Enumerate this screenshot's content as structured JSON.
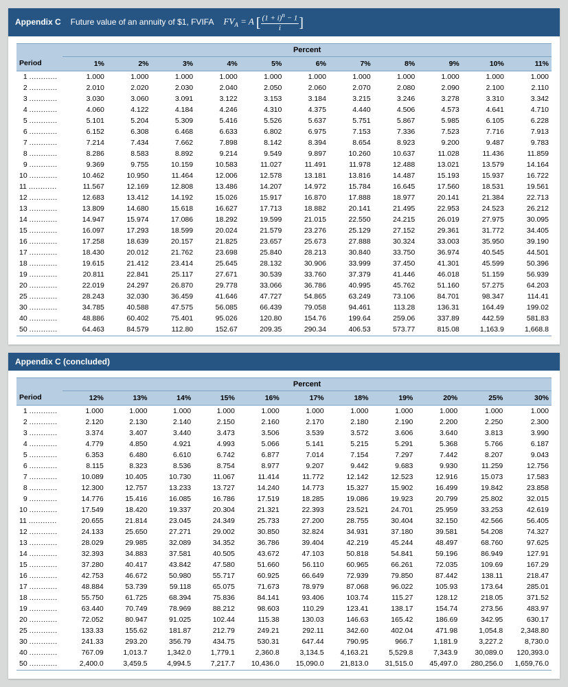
{
  "sheet1": {
    "title_appendix": "Appendix C",
    "title_desc": "Future value of an annuity of $1, FV",
    "title_sub": "IFA",
    "super_header": "Percent",
    "period_label": "Period",
    "cols": [
      "1%",
      "2%",
      "3%",
      "4%",
      "5%",
      "6%",
      "7%",
      "8%",
      "9%",
      "10%",
      "11%"
    ],
    "rows": [
      {
        "p": "1",
        "v": [
          "1.000",
          "1.000",
          "1.000",
          "1.000",
          "1.000",
          "1.000",
          "1.000",
          "1.000",
          "1.000",
          "1.000",
          "1.000"
        ]
      },
      {
        "p": "2",
        "v": [
          "2.010",
          "2.020",
          "2.030",
          "2.040",
          "2.050",
          "2.060",
          "2.070",
          "2.080",
          "2.090",
          "2.100",
          "2.110"
        ]
      },
      {
        "p": "3",
        "v": [
          "3.030",
          "3.060",
          "3.091",
          "3.122",
          "3.153",
          "3.184",
          "3.215",
          "3.246",
          "3.278",
          "3.310",
          "3.342"
        ]
      },
      {
        "p": "4",
        "v": [
          "4.060",
          "4.122",
          "4.184",
          "4.246",
          "4.310",
          "4.375",
          "4.440",
          "4.506",
          "4.573",
          "4.641",
          "4.710"
        ]
      },
      {
        "p": "5",
        "v": [
          "5.101",
          "5.204",
          "5.309",
          "5.416",
          "5.526",
          "5.637",
          "5.751",
          "5.867",
          "5.985",
          "6.105",
          "6.228"
        ]
      },
      {
        "p": "6",
        "v": [
          "6.152",
          "6.308",
          "6.468",
          "6.633",
          "6.802",
          "6.975",
          "7.153",
          "7.336",
          "7.523",
          "7.716",
          "7.913"
        ]
      },
      {
        "p": "7",
        "v": [
          "7.214",
          "7.434",
          "7.662",
          "7.898",
          "8.142",
          "8.394",
          "8.654",
          "8.923",
          "9.200",
          "9.487",
          "9.783"
        ]
      },
      {
        "p": "8",
        "v": [
          "8.286",
          "8.583",
          "8.892",
          "9.214",
          "9.549",
          "9.897",
          "10.260",
          "10.637",
          "11.028",
          "11.436",
          "11.859"
        ]
      },
      {
        "p": "9",
        "v": [
          "9.369",
          "9.755",
          "10.159",
          "10.583",
          "11.027",
          "11.491",
          "11.978",
          "12.488",
          "13.021",
          "13.579",
          "14.164"
        ]
      },
      {
        "p": "10",
        "v": [
          "10.462",
          "10.950",
          "11.464",
          "12.006",
          "12.578",
          "13.181",
          "13.816",
          "14.487",
          "15.193",
          "15.937",
          "16.722"
        ]
      },
      {
        "p": "11",
        "v": [
          "11.567",
          "12.169",
          "12.808",
          "13.486",
          "14.207",
          "14.972",
          "15.784",
          "16.645",
          "17.560",
          "18.531",
          "19.561"
        ]
      },
      {
        "p": "12",
        "v": [
          "12.683",
          "13.412",
          "14.192",
          "15.026",
          "15.917",
          "16.870",
          "17.888",
          "18.977",
          "20.141",
          "21.384",
          "22.713"
        ]
      },
      {
        "p": "13",
        "v": [
          "13.809",
          "14.680",
          "15.618",
          "16.627",
          "17.713",
          "18.882",
          "20.141",
          "21.495",
          "22.953",
          "24.523",
          "26.212"
        ]
      },
      {
        "p": "14",
        "v": [
          "14.947",
          "15.974",
          "17.086",
          "18.292",
          "19.599",
          "21.015",
          "22.550",
          "24.215",
          "26.019",
          "27.975",
          "30.095"
        ]
      },
      {
        "p": "15",
        "v": [
          "16.097",
          "17.293",
          "18.599",
          "20.024",
          "21.579",
          "23.276",
          "25.129",
          "27.152",
          "29.361",
          "31.772",
          "34.405"
        ]
      },
      {
        "p": "16",
        "v": [
          "17.258",
          "18.639",
          "20.157",
          "21.825",
          "23.657",
          "25.673",
          "27.888",
          "30.324",
          "33.003",
          "35.950",
          "39.190"
        ]
      },
      {
        "p": "17",
        "v": [
          "18.430",
          "20.012",
          "21.762",
          "23.698",
          "25.840",
          "28.213",
          "30.840",
          "33.750",
          "36.974",
          "40.545",
          "44.501"
        ]
      },
      {
        "p": "18",
        "v": [
          "19.615",
          "21.412",
          "23.414",
          "25.645",
          "28.132",
          "30.906",
          "33.999",
          "37.450",
          "41.301",
          "45.599",
          "50.396"
        ]
      },
      {
        "p": "19",
        "v": [
          "20.811",
          "22.841",
          "25.117",
          "27.671",
          "30.539",
          "33.760",
          "37.379",
          "41.446",
          "46.018",
          "51.159",
          "56.939"
        ]
      },
      {
        "p": "20",
        "v": [
          "22.019",
          "24.297",
          "26.870",
          "29.778",
          "33.066",
          "36.786",
          "40.995",
          "45.762",
          "51.160",
          "57.275",
          "64.203"
        ]
      },
      {
        "p": "25",
        "v": [
          "28.243",
          "32.030",
          "36.459",
          "41.646",
          "47.727",
          "54.865",
          "63.249",
          "73.106",
          "84.701",
          "98.347",
          "114.41"
        ]
      },
      {
        "p": "30",
        "v": [
          "34.785",
          "40.588",
          "47.575",
          "56.085",
          "66.439",
          "79.058",
          "94.461",
          "113.28",
          "136.31",
          "164.49",
          "199.02"
        ]
      },
      {
        "p": "40",
        "v": [
          "48.886",
          "60.402",
          "75.401",
          "95.026",
          "120.80",
          "154.76",
          "199.64",
          "259.06",
          "337.89",
          "442.59",
          "581.83"
        ]
      },
      {
        "p": "50",
        "v": [
          "64.463",
          "84.579",
          "112.80",
          "152.67",
          "209.35",
          "290.34",
          "406.53",
          "573.77",
          "815.08",
          "1,163.9",
          "1,668.8"
        ]
      }
    ]
  },
  "sheet2": {
    "title_full": "Appendix C (concluded)",
    "super_header": "Percent",
    "period_label": "Period",
    "cols": [
      "12%",
      "13%",
      "14%",
      "15%",
      "16%",
      "17%",
      "18%",
      "19%",
      "20%",
      "25%",
      "30%"
    ],
    "rows": [
      {
        "p": "1",
        "v": [
          "1.000",
          "1.000",
          "1.000",
          "1.000",
          "1.000",
          "1.000",
          "1.000",
          "1.000",
          "1.000",
          "1.000",
          "1.000"
        ]
      },
      {
        "p": "2",
        "v": [
          "2.120",
          "2.130",
          "2.140",
          "2.150",
          "2.160",
          "2.170",
          "2.180",
          "2.190",
          "2.200",
          "2.250",
          "2.300"
        ]
      },
      {
        "p": "3",
        "v": [
          "3.374",
          "3.407",
          "3.440",
          "3.473",
          "3.506",
          "3.539",
          "3.572",
          "3.606",
          "3.640",
          "3.813",
          "3.990"
        ]
      },
      {
        "p": "4",
        "v": [
          "4.779",
          "4.850",
          "4.921",
          "4.993",
          "5.066",
          "5.141",
          "5.215",
          "5.291",
          "5.368",
          "5.766",
          "6.187"
        ]
      },
      {
        "p": "5",
        "v": [
          "6.353",
          "6.480",
          "6.610",
          "6.742",
          "6.877",
          "7.014",
          "7.154",
          "7.297",
          "7.442",
          "8.207",
          "9.043"
        ]
      },
      {
        "p": "6",
        "v": [
          "8.115",
          "8.323",
          "8.536",
          "8.754",
          "8.977",
          "9.207",
          "9.442",
          "9.683",
          "9.930",
          "11.259",
          "12.756"
        ]
      },
      {
        "p": "7",
        "v": [
          "10.089",
          "10.405",
          "10.730",
          "11.067",
          "11.414",
          "11.772",
          "12.142",
          "12.523",
          "12.916",
          "15.073",
          "17.583"
        ]
      },
      {
        "p": "8",
        "v": [
          "12.300",
          "12.757",
          "13.233",
          "13.727",
          "14.240",
          "14.773",
          "15.327",
          "15.902",
          "16.499",
          "19.842",
          "23.858"
        ]
      },
      {
        "p": "9",
        "v": [
          "14.776",
          "15.416",
          "16.085",
          "16.786",
          "17.519",
          "18.285",
          "19.086",
          "19.923",
          "20.799",
          "25.802",
          "32.015"
        ]
      },
      {
        "p": "10",
        "v": [
          "17.549",
          "18.420",
          "19.337",
          "20.304",
          "21.321",
          "22.393",
          "23.521",
          "24.701",
          "25.959",
          "33.253",
          "42.619"
        ]
      },
      {
        "p": "11",
        "v": [
          "20.655",
          "21.814",
          "23.045",
          "24.349",
          "25.733",
          "27.200",
          "28.755",
          "30.404",
          "32.150",
          "42.566",
          "56.405"
        ]
      },
      {
        "p": "12",
        "v": [
          "24.133",
          "25.650",
          "27.271",
          "29.002",
          "30.850",
          "32.824",
          "34.931",
          "37.180",
          "39.581",
          "54.208",
          "74.327"
        ]
      },
      {
        "p": "13",
        "v": [
          "28.029",
          "29.985",
          "32.089",
          "34.352",
          "36.786",
          "39.404",
          "42.219",
          "45.244",
          "48.497",
          "68.760",
          "97.625"
        ]
      },
      {
        "p": "14",
        "v": [
          "32.393",
          "34.883",
          "37.581",
          "40.505",
          "43.672",
          "47.103",
          "50.818",
          "54.841",
          "59.196",
          "86.949",
          "127.91"
        ]
      },
      {
        "p": "15",
        "v": [
          "37.280",
          "40.417",
          "43.842",
          "47.580",
          "51.660",
          "56.110",
          "60.965",
          "66.261",
          "72.035",
          "109.69",
          "167.29"
        ]
      },
      {
        "p": "16",
        "v": [
          "42.753",
          "46.672",
          "50.980",
          "55.717",
          "60.925",
          "66.649",
          "72.939",
          "79.850",
          "87.442",
          "138.11",
          "218.47"
        ]
      },
      {
        "p": "17",
        "v": [
          "48.884",
          "53.739",
          "59.118",
          "65.075",
          "71.673",
          "78.979",
          "87.068",
          "96.022",
          "105.93",
          "173.64",
          "285.01"
        ]
      },
      {
        "p": "18",
        "v": [
          "55.750",
          "61.725",
          "68.394",
          "75.836",
          "84.141",
          "93.406",
          "103.74",
          "115.27",
          "128.12",
          "218.05",
          "371.52"
        ]
      },
      {
        "p": "19",
        "v": [
          "63.440",
          "70.749",
          "78.969",
          "88.212",
          "98.603",
          "110.29",
          "123.41",
          "138.17",
          "154.74",
          "273.56",
          "483.97"
        ]
      },
      {
        "p": "20",
        "v": [
          "72.052",
          "80.947",
          "91.025",
          "102.44",
          "115.38",
          "130.03",
          "146.63",
          "165.42",
          "186.69",
          "342.95",
          "630.17"
        ]
      },
      {
        "p": "25",
        "v": [
          "133.33",
          "155.62",
          "181.87",
          "212.79",
          "249.21",
          "292.11",
          "342.60",
          "402.04",
          "471.98",
          "1,054.8",
          "2,348.80"
        ]
      },
      {
        "p": "30",
        "v": [
          "241.33",
          "293.20",
          "356.79",
          "434.75",
          "530.31",
          "647.44",
          "790.95",
          "966.7",
          "1,181.9",
          "3,227.2",
          "8,730.0"
        ]
      },
      {
        "p": "40",
        "v": [
          "767.09",
          "1,013.7",
          "1,342.0",
          "1,779.1",
          "2,360.8",
          "3,134.5",
          "4,163.21",
          "5,529.8",
          "7,343.9",
          "30,089.0",
          "120,393.0"
        ]
      },
      {
        "p": "50",
        "v": [
          "2,400.0",
          "3,459.5",
          "4,994.5",
          "7,217.7",
          "10,436.0",
          "15,090.0",
          "21,813.0",
          "31,515.0",
          "45,497.0",
          "280,256.0",
          "1,659,76.0"
        ]
      }
    ]
  }
}
